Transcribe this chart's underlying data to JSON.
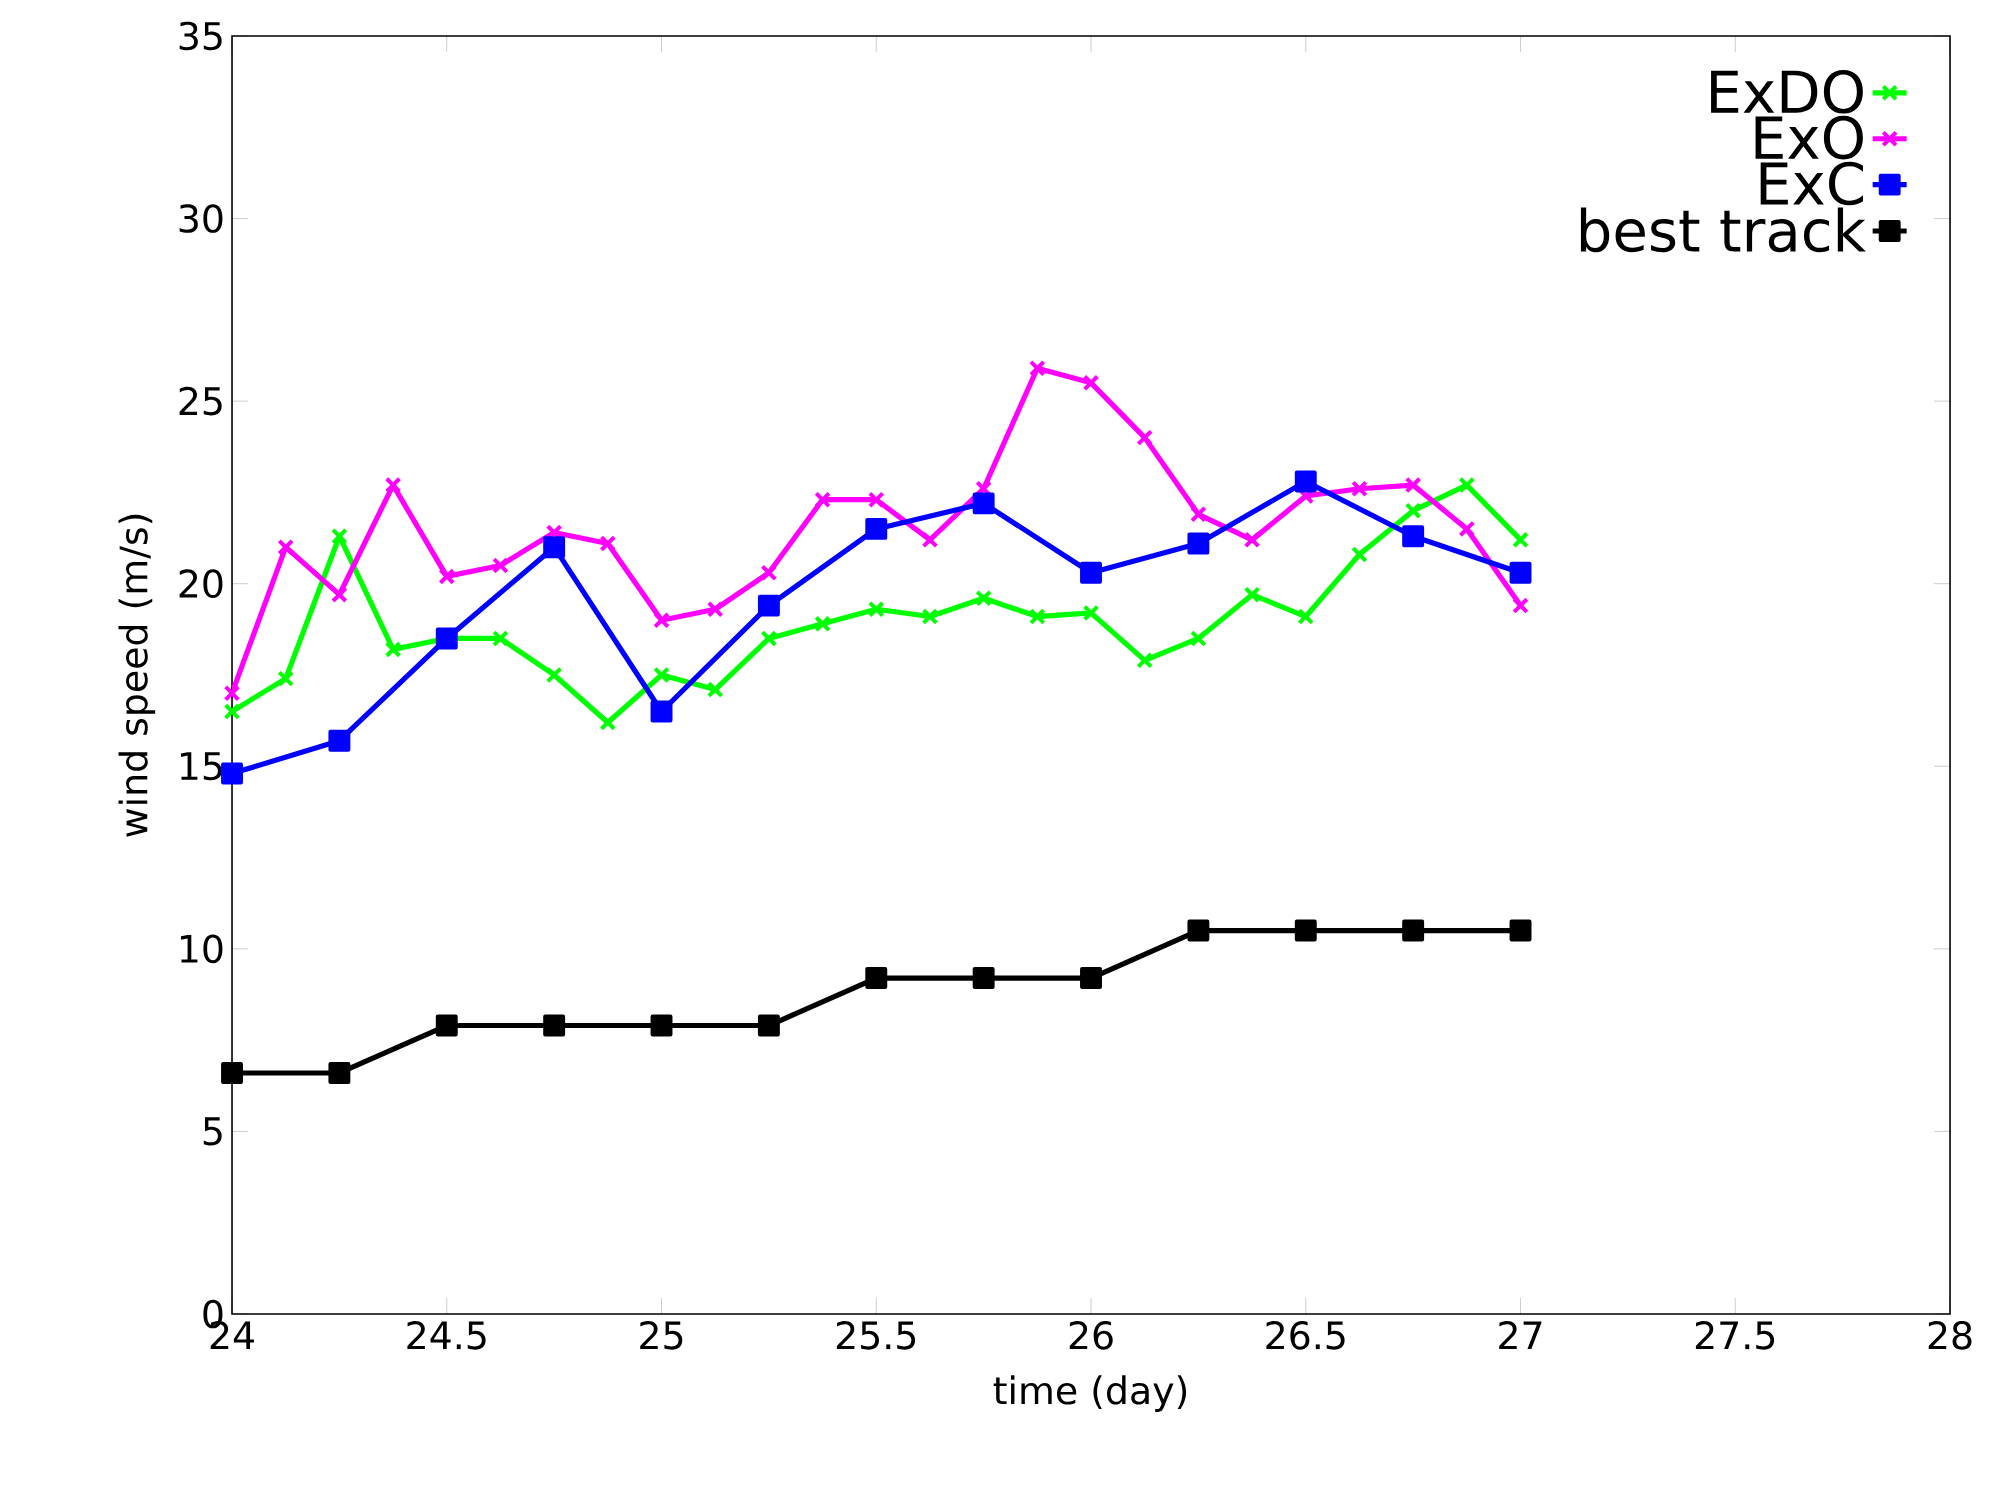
{
  "chart_data": {
    "type": "line",
    "xlabel": "time (day)",
    "ylabel": "wind speed (m/s)",
    "xlim": [
      24,
      28
    ],
    "ylim": [
      0,
      35
    ],
    "xticks": [
      24,
      24.5,
      25,
      25.5,
      26,
      26.5,
      27,
      27.5,
      28
    ],
    "yticks": [
      0,
      5,
      10,
      15,
      20,
      25,
      30,
      35
    ],
    "grid": false,
    "legend": "top right",
    "line_style": "solid",
    "series": [
      {
        "name": "ExDO",
        "color": "#00ff00",
        "marker": "cross",
        "x": [
          24,
          24.125,
          24.25,
          24.375,
          24.5,
          24.625,
          24.75,
          24.875,
          25,
          25.125,
          25.25,
          25.375,
          25.5,
          25.625,
          25.75,
          25.875,
          26,
          26.125,
          26.25,
          26.375,
          26.5,
          26.625,
          26.75,
          26.875,
          27
        ],
        "values": [
          16.5,
          17.4,
          21.3,
          18.2,
          18.5,
          18.5,
          17.5,
          16.2,
          17.5,
          17.1,
          18.5,
          18.9,
          19.3,
          19.1,
          19.6,
          19.1,
          19.2,
          17.9,
          18.5,
          19.7,
          19.1,
          20.8,
          22.0,
          22.7,
          21.2
        ]
      },
      {
        "name": "ExO",
        "color": "#ff00ff",
        "marker": "cross",
        "x": [
          24,
          24.125,
          24.25,
          24.375,
          24.5,
          24.625,
          24.75,
          24.875,
          25,
          25.125,
          25.25,
          25.375,
          25.5,
          25.625,
          25.75,
          25.875,
          26,
          26.125,
          26.25,
          26.375,
          26.5,
          26.625,
          26.75,
          26.875,
          27
        ],
        "values": [
          17.0,
          21.0,
          19.7,
          22.7,
          20.2,
          20.5,
          21.4,
          21.1,
          19.0,
          19.3,
          20.3,
          22.3,
          22.3,
          21.2,
          22.6,
          25.9,
          25.5,
          24.0,
          21.9,
          21.2,
          22.4,
          22.6,
          22.7,
          21.5,
          19.4
        ]
      },
      {
        "name": "ExC",
        "color": "#0000ff",
        "marker": "square",
        "x": [
          24,
          24.25,
          24.5,
          24.75,
          25,
          25.25,
          25.5,
          25.75,
          26,
          26.25,
          26.5,
          26.75,
          27
        ],
        "values": [
          14.8,
          15.7,
          18.5,
          21.0,
          16.5,
          19.4,
          21.5,
          22.2,
          20.3,
          21.1,
          22.8,
          21.3,
          20.3
        ]
      },
      {
        "name": "best track",
        "color": "#000000",
        "marker": "square",
        "x": [
          24,
          24.25,
          24.5,
          24.75,
          25,
          25.25,
          25.5,
          25.75,
          26,
          26.25,
          26.5,
          26.75,
          27
        ],
        "values": [
          6.6,
          6.6,
          7.9,
          7.9,
          7.9,
          7.9,
          9.2,
          9.2,
          9.2,
          10.5,
          10.5,
          10.5,
          10.5
        ]
      }
    ]
  }
}
